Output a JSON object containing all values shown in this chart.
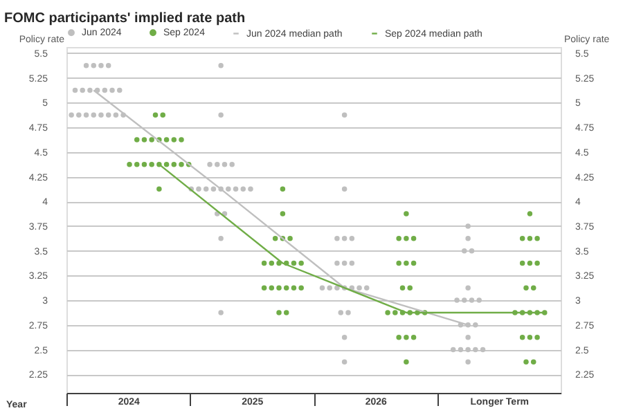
{
  "chart_data": {
    "type": "scatter",
    "title": "FOMC participants' implied rate path",
    "xlabel": "Year",
    "ylabel": "Policy rate",
    "y2label": "Policy rate",
    "xlim": [
      2023.5,
      2027.5
    ],
    "xticks": [
      {
        "value": 2023.5,
        "label": null
      },
      2024,
      {
        "value": 2024.5,
        "label": null
      },
      2025,
      {
        "value": 2025.5,
        "label": null
      },
      2026,
      {
        "value": 2026.5,
        "label": null
      },
      {
        "value": 2027,
        "label": "Longer Term"
      }
    ],
    "ylim": [
      2.0625,
      5.5625
    ],
    "yticks": [
      2.25,
      2.5,
      2.75,
      3,
      3.25,
      3.5,
      3.75,
      4,
      4.25,
      4.5,
      4.75,
      5,
      5.25,
      5.5
    ],
    "y2lim": [
      2.0625,
      5.5625
    ],
    "y2ticks": [
      2.25,
      2.5,
      2.75,
      3,
      3.25,
      3.5,
      3.75,
      4,
      4.25,
      4.5,
      4.75,
      5,
      5.25,
      5.5
    ],
    "grid": "y",
    "legend": "top",
    "series": [
      {
        "name": "Jun 2024",
        "marker": "circle",
        "color": "#bfbfbf",
        "x": [
          2023.66,
          2023.72,
          2023.78,
          2023.84,
          2023.57,
          2023.63,
          2023.69,
          2023.75,
          2023.81,
          2023.87,
          2023.93,
          2023.54,
          2023.6,
          2023.66,
          2023.72,
          2023.78,
          2023.84,
          2023.9,
          2023.96,
          2024.75,
          2024.75,
          2024.66,
          2024.72,
          2024.78,
          2024.84,
          2024.51,
          2024.57,
          2024.63,
          2024.69,
          2024.75,
          2024.81,
          2024.87,
          2024.93,
          2024.99,
          2024.72,
          2024.78,
          2024.75,
          2024.75,
          2025.75,
          2025.75,
          2025.69,
          2025.75,
          2025.81,
          2025.69,
          2025.75,
          2025.81,
          2025.57,
          2025.63,
          2025.69,
          2025.75,
          2025.81,
          2025.87,
          2025.93,
          2025.72,
          2025.78,
          2025.75,
          2025.75,
          2026.75,
          2026.75,
          2026.72,
          2026.78,
          2026.75,
          2026.66,
          2026.72,
          2026.78,
          2026.84,
          2026.69,
          2026.75,
          2026.81,
          2026.75,
          2026.63,
          2026.69,
          2026.75,
          2026.81,
          2026.87,
          2026.75
        ],
        "values": [
          5.375,
          5.375,
          5.375,
          5.375,
          5.125,
          5.125,
          5.125,
          5.125,
          5.125,
          5.125,
          5.125,
          4.875,
          4.875,
          4.875,
          4.875,
          4.875,
          4.875,
          4.875,
          4.875,
          5.375,
          4.875,
          4.375,
          4.375,
          4.375,
          4.375,
          4.125,
          4.125,
          4.125,
          4.125,
          4.125,
          4.125,
          4.125,
          4.125,
          4.125,
          3.875,
          3.875,
          3.625,
          2.875,
          4.875,
          4.125,
          3.625,
          3.625,
          3.625,
          3.375,
          3.375,
          3.375,
          3.125,
          3.125,
          3.125,
          3.125,
          3.125,
          3.125,
          3.125,
          2.875,
          2.875,
          2.625,
          2.375,
          3.75,
          3.625,
          3.5,
          3.5,
          3.125,
          3,
          3,
          3,
          3,
          2.75,
          2.75,
          2.75,
          2.625,
          2.5,
          2.5,
          2.5,
          2.5,
          2.5,
          2.375
        ]
      },
      {
        "name": "Sep 2024",
        "marker": "circle",
        "color": "#70ad47",
        "x": [
          2024.22,
          2024.28,
          2024.07,
          2024.13,
          2024.19,
          2024.25,
          2024.31,
          2024.37,
          2024.43,
          2024.01,
          2024.07,
          2024.13,
          2024.19,
          2024.25,
          2024.31,
          2024.37,
          2024.43,
          2024.49,
          2024.25,
          2025.25,
          2025.25,
          2025.19,
          2025.25,
          2025.31,
          2025.1,
          2025.16,
          2025.22,
          2025.28,
          2025.34,
          2025.4,
          2025.1,
          2025.16,
          2025.22,
          2025.28,
          2025.34,
          2025.4,
          2025.22,
          2025.28,
          2026.25,
          2026.19,
          2026.25,
          2026.31,
          2026.19,
          2026.25,
          2026.31,
          2026.22,
          2026.28,
          2026.1,
          2026.16,
          2026.22,
          2026.28,
          2026.34,
          2026.4,
          2026.19,
          2026.25,
          2026.31,
          2026.25,
          2027.25,
          2027.19,
          2027.25,
          2027.31,
          2027.19,
          2027.25,
          2027.31,
          2027.22,
          2027.28,
          2027.13,
          2027.19,
          2027.25,
          2027.31,
          2027.37,
          2027.19,
          2027.25,
          2027.31,
          2027.22,
          2027.28
        ],
        "values": [
          4.875,
          4.875,
          4.625,
          4.625,
          4.625,
          4.625,
          4.625,
          4.625,
          4.625,
          4.375,
          4.375,
          4.375,
          4.375,
          4.375,
          4.375,
          4.375,
          4.375,
          4.375,
          4.125,
          4.125,
          3.875,
          3.625,
          3.625,
          3.625,
          3.375,
          3.375,
          3.375,
          3.375,
          3.375,
          3.375,
          3.125,
          3.125,
          3.125,
          3.125,
          3.125,
          3.125,
          2.875,
          2.875,
          3.875,
          3.625,
          3.625,
          3.625,
          3.375,
          3.375,
          3.375,
          3.125,
          3.125,
          2.875,
          2.875,
          2.875,
          2.875,
          2.875,
          2.875,
          2.625,
          2.625,
          2.625,
          2.375,
          3.875,
          3.625,
          3.625,
          3.625,
          3.375,
          3.375,
          3.375,
          3.125,
          3.125,
          2.875,
          2.875,
          2.875,
          2.875,
          2.875,
          2.625,
          2.625,
          2.625,
          2.375,
          2.375
        ]
      },
      {
        "name": "Jun 2024 median path",
        "type": "line",
        "color": "#bfbfbf",
        "x": [
          2023.72,
          2024.75,
          2025.75,
          2026.75
        ],
        "values": [
          5.125,
          4.125,
          3.125,
          2.75
        ]
      },
      {
        "name": "Sep 2024 median path",
        "type": "line",
        "color": "#70ad47",
        "x": [
          2024.25,
          2025.25,
          2026.25,
          2027.36
        ],
        "values": [
          4.375,
          3.375,
          2.875,
          2.875
        ]
      }
    ]
  }
}
